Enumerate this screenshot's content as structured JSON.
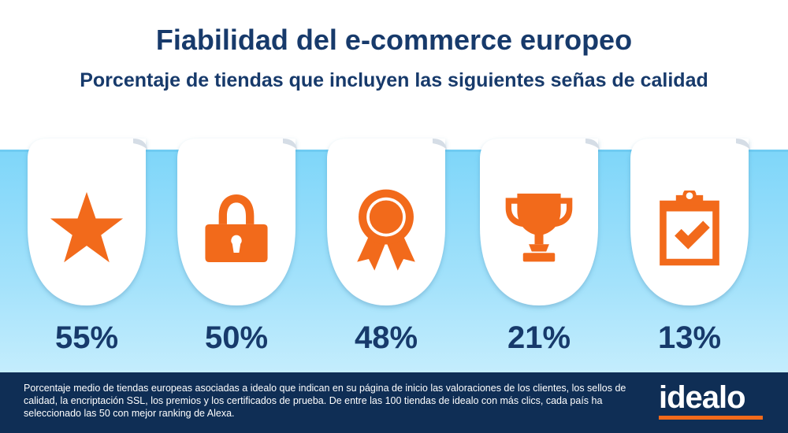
{
  "header": {
    "title": "Fiabilidad del e-commerce europeo",
    "subtitle": "Porcentaje de tiendas que incluyen las siguientes señas de calidad"
  },
  "chart_data": {
    "type": "bar",
    "title": "Fiabilidad del e-commerce europeo",
    "subtitle": "Porcentaje de tiendas que incluyen las siguientes señas de calidad",
    "unit": "%",
    "series": [
      {
        "icon": "star-icon",
        "value": 55,
        "label": "55%"
      },
      {
        "icon": "lock-icon",
        "value": 50,
        "label": "50%"
      },
      {
        "icon": "award-rosette-icon",
        "value": 48,
        "label": "48%"
      },
      {
        "icon": "trophy-icon",
        "value": 21,
        "label": "21%"
      },
      {
        "icon": "clipboard-check-icon",
        "value": 13,
        "label": "13%"
      }
    ]
  },
  "footer": {
    "note": "Porcentaje medio de tiendas europeas asociadas a idealo que indican en su página de inicio las valoraciones de los clientes, los sellos de calidad, la encriptación SSL, los premios y los certificados de prueba. De entre las 100 tiendas de idealo con más clics, cada país ha seleccionado las 50 con mejor ranking de Alexa.",
    "logo": "idealo"
  },
  "colors": {
    "accent": "#f26a1b",
    "navy": "#173a6b",
    "footer_bg": "#0f2e55",
    "band": "#8fdcfa"
  }
}
